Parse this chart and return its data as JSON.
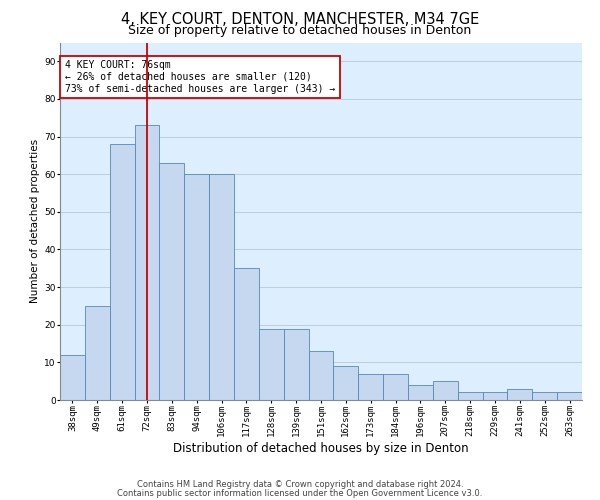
{
  "title1": "4, KEY COURT, DENTON, MANCHESTER, M34 7GE",
  "title2": "Size of property relative to detached houses in Denton",
  "xlabel": "Distribution of detached houses by size in Denton",
  "ylabel": "Number of detached properties",
  "categories": [
    "38sqm",
    "49sqm",
    "61sqm",
    "72sqm",
    "83sqm",
    "94sqm",
    "106sqm",
    "117sqm",
    "128sqm",
    "139sqm",
    "151sqm",
    "162sqm",
    "173sqm",
    "184sqm",
    "196sqm",
    "207sqm",
    "218sqm",
    "229sqm",
    "241sqm",
    "252sqm",
    "263sqm"
  ],
  "values": [
    12,
    25,
    68,
    73,
    63,
    60,
    60,
    35,
    19,
    19,
    13,
    9,
    7,
    7,
    4,
    5,
    2,
    2,
    3,
    2,
    2
  ],
  "bar_color": "#c5d8f0",
  "bar_edge_color": "#5588bb",
  "vline_x_index": 3,
  "vline_color": "#cc0000",
  "annotation_text": "4 KEY COURT: 76sqm\n← 26% of detached houses are smaller (120)\n73% of semi-detached houses are larger (343) →",
  "annotation_box_color": "#ffffff",
  "annotation_box_edge": "#cc0000",
  "ylim": [
    0,
    95
  ],
  "yticks": [
    0,
    10,
    20,
    30,
    40,
    50,
    60,
    70,
    80,
    90
  ],
  "grid_color": "#bbccdd",
  "bg_color": "#ddeeff",
  "footer1": "Contains HM Land Registry data © Crown copyright and database right 2024.",
  "footer2": "Contains public sector information licensed under the Open Government Licence v3.0.",
  "title1_fontsize": 10.5,
  "title2_fontsize": 9,
  "xlabel_fontsize": 8.5,
  "ylabel_fontsize": 7.5,
  "tick_fontsize": 6.5,
  "annotation_fontsize": 7,
  "footer_fontsize": 6
}
